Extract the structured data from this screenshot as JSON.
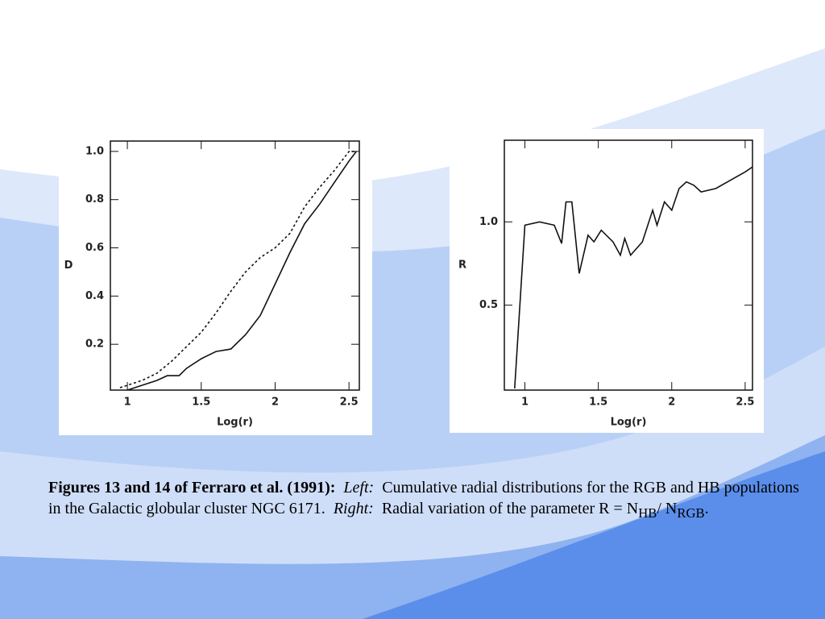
{
  "chart_data": [
    {
      "type": "line",
      "xlabel": "Log(r)",
      "ylabel": "D",
      "xlim": [
        0.885,
        2.57
      ],
      "ylim": [
        0.01,
        1.043
      ],
      "xticks": [
        1,
        1.5,
        2,
        2.5
      ],
      "yticks": [
        0.2,
        0.4,
        0.6,
        0.8,
        {
          "value": 1,
          "label": "1.0"
        }
      ],
      "series": [
        {
          "color": "#111111",
          "style": "solid",
          "x": [
            1.0,
            1.1,
            1.2,
            1.27,
            1.35,
            1.4,
            1.5,
            1.6,
            1.7,
            1.8,
            1.9,
            2.0,
            2.1,
            2.2,
            2.3,
            2.4,
            2.5,
            2.55
          ],
          "values": [
            0.01,
            0.03,
            0.05,
            0.07,
            0.07,
            0.1,
            0.14,
            0.17,
            0.18,
            0.24,
            0.32,
            0.45,
            0.58,
            0.7,
            0.78,
            0.87,
            0.96,
            1.0
          ]
        },
        {
          "color": "#111111",
          "style": "dashed",
          "x": [
            0.95,
            1.1,
            1.2,
            1.3,
            1.4,
            1.5,
            1.6,
            1.7,
            1.8,
            1.9,
            2.0,
            2.1,
            2.2,
            2.3,
            2.4,
            2.5,
            2.55
          ],
          "values": [
            0.02,
            0.05,
            0.08,
            0.13,
            0.19,
            0.25,
            0.33,
            0.42,
            0.5,
            0.56,
            0.6,
            0.66,
            0.77,
            0.85,
            0.92,
            1.0,
            1.0
          ]
        }
      ]
    },
    {
      "type": "line",
      "xlabel": "Log(r)",
      "ylabel": "R",
      "xlim": [
        0.86,
        2.55
      ],
      "ylim": [
        -0.01,
        1.49
      ],
      "xticks": [
        1,
        1.5,
        2,
        2.5
      ],
      "yticks": [
        0.5,
        {
          "value": 1,
          "label": "1.0"
        }
      ],
      "series": [
        {
          "color": "#111111",
          "style": "solid",
          "x": [
            0.93,
            1.0,
            1.1,
            1.2,
            1.25,
            1.28,
            1.32,
            1.37,
            1.43,
            1.47,
            1.52,
            1.6,
            1.65,
            1.68,
            1.72,
            1.8,
            1.87,
            1.9,
            1.95,
            2.0,
            2.05,
            2.1,
            2.15,
            2.2,
            2.3,
            2.4,
            2.5,
            2.55
          ],
          "values": [
            0.0,
            0.98,
            1.0,
            0.98,
            0.87,
            1.12,
            1.12,
            0.69,
            0.92,
            0.88,
            0.95,
            0.88,
            0.8,
            0.9,
            0.8,
            0.88,
            1.07,
            0.98,
            1.12,
            1.07,
            1.2,
            1.24,
            1.22,
            1.18,
            1.2,
            1.25,
            1.3,
            1.33
          ]
        }
      ]
    }
  ],
  "caption": {
    "bold": "Figures 13 and 14 of Ferraro et al. (1991):",
    "left_label": "Left:",
    "left_text": "Cumulative radial distributions for the RGB and HB populations in the Galactic globular cluster NGC 6171.",
    "right_label": "Right:",
    "right_text": "Radial variation of the parameter R = N",
    "sub1": "HB",
    "mid": "/ N",
    "sub2": "RGB",
    "end": "."
  }
}
